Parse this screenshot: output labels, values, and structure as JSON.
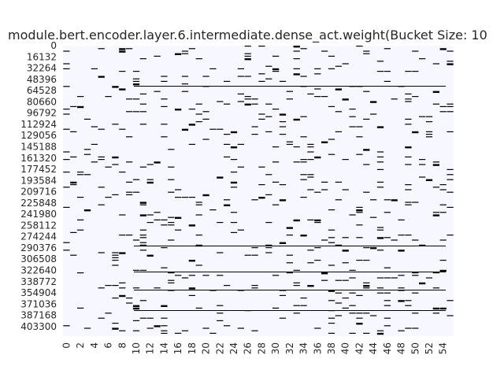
{
  "chart_data": {
    "type": "heatmap",
    "title": "module.bert.encoder.layer.6.intermediate.dense_act.weight(Bucket Size: 10",
    "xlabel": "",
    "ylabel": "",
    "x_tick_labels": [
      "0",
      "2",
      "4",
      "6",
      "8",
      "10",
      "12",
      "14",
      "16",
      "18",
      "20",
      "22",
      "24",
      "26",
      "28",
      "30",
      "32",
      "34",
      "36",
      "38",
      "40",
      "42",
      "44",
      "46",
      "48",
      "50",
      "52",
      "54"
    ],
    "y_tick_labels": [
      "0",
      "16132",
      "32264",
      "48396",
      "64528",
      "80660",
      "96792",
      "112924",
      "129056",
      "145188",
      "161320",
      "177452",
      "193584",
      "209716",
      "225848",
      "241980",
      "258112",
      "274244",
      "290376",
      "306508",
      "322640",
      "338772",
      "354904",
      "371036",
      "387168",
      "403300"
    ],
    "columns": 56,
    "row_step": 16132,
    "y_max": 417000,
    "colors": {
      "background": "#f7f8ff",
      "mark": "#000000"
    },
    "grid": false,
    "legend": "none"
  }
}
